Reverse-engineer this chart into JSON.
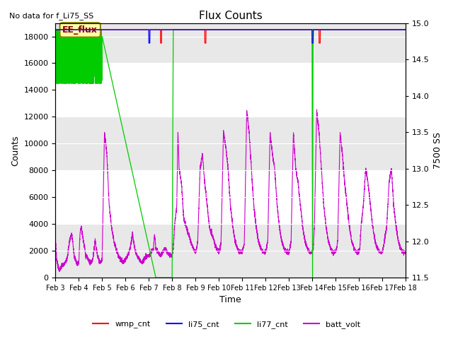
{
  "title": "Flux Counts",
  "top_left_text": "No data for f_Li75_SS",
  "xlabel": "Time",
  "ylabel_left": "Counts",
  "ylabel_right": "7500 SS",
  "ylim_left": [
    0,
    19000
  ],
  "ylim_right": [
    11.5,
    15.0
  ],
  "x_tick_labels": [
    "Feb 3",
    "Feb 4",
    "Feb 5",
    "Feb 6",
    "Feb 7",
    "Feb 8",
    "Feb 9",
    "Feb 10",
    "Feb 11",
    "Feb 12",
    "Feb 13",
    "Feb 14",
    "Feb 15",
    "Feb 16",
    "Feb 17",
    "Feb 18"
  ],
  "annotation_text": "EE_flux",
  "colors": {
    "wmp_cnt": "#ff0000",
    "li75_cnt": "#0000ff",
    "li77_cnt": "#00cc00",
    "batt_volt": "#cc00cc",
    "grid_band": "#e8e8e8"
  },
  "legend_labels": [
    "wmp_cnt",
    "li75_cnt",
    "li77_cnt",
    "batt_volt"
  ],
  "left_yticks": [
    0,
    2000,
    4000,
    6000,
    8000,
    10000,
    12000,
    14000,
    16000,
    18000
  ],
  "right_yticks": [
    11.5,
    12.0,
    12.5,
    13.0,
    13.5,
    14.0,
    14.5,
    15.0
  ]
}
